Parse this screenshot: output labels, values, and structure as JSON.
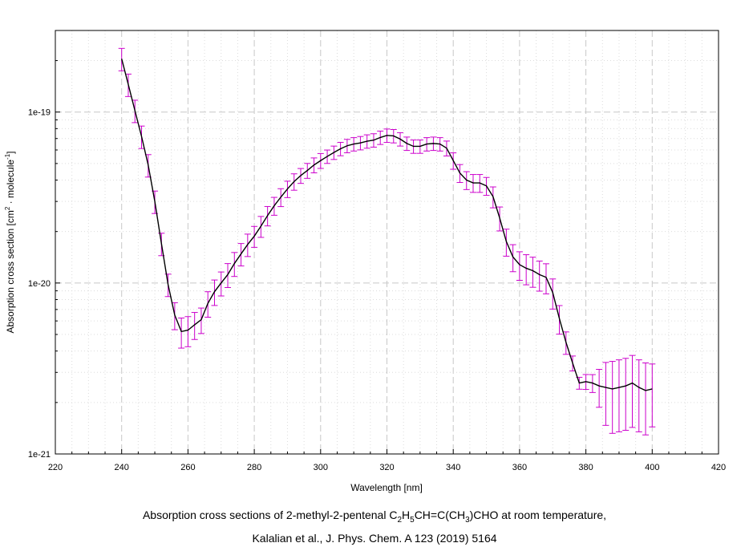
{
  "caption": {
    "line1_a": "Absorption cross sections of 2-methyl-2-pentenal C",
    "line1_s1": "2",
    "line1_b": "H",
    "line1_s2": "5",
    "line1_c": "CH=C(CH",
    "line1_s3": "3",
    "line1_d": ")CHO at room temperature,",
    "line2": "Kalalian et al., J. Phys. Chem. A 123 (2019) 5164"
  },
  "chart_data": {
    "type": "line",
    "xlabel": "Wavelength [nm]",
    "ylabel_main": "Absorption cross section [cm",
    "ylabel_sup1": "2",
    "ylabel_mid": " · molecule",
    "ylabel_sup2": "-1",
    "ylabel_end": "]",
    "xlim": [
      220,
      420
    ],
    "ylim": [
      1e-21,
      3e-19
    ],
    "yscale": "log",
    "x_ticks": [
      220,
      240,
      260,
      280,
      300,
      320,
      340,
      360,
      380,
      400,
      420
    ],
    "x_tick_labels": [
      "220",
      "240",
      "260",
      "280",
      "300",
      "320",
      "340",
      "360",
      "380",
      "400",
      "420"
    ],
    "y_ticks": [
      1e-21,
      1e-20,
      1e-19
    ],
    "y_tick_labels": [
      "1e-21",
      "1e-20",
      "1e-19"
    ],
    "grid": true,
    "line_color": "#000000",
    "errorbar_color": "#cc00cc",
    "series": [
      {
        "x": [
          240,
          242,
          244,
          246,
          248,
          250,
          252,
          254,
          256,
          258,
          260,
          262,
          264,
          266,
          268,
          270,
          272,
          274,
          276,
          278,
          280,
          282,
          284,
          286,
          288,
          290,
          292,
          294,
          296,
          298,
          300,
          302,
          304,
          306,
          308,
          310,
          312,
          314,
          316,
          318,
          320,
          322,
          324,
          326,
          328,
          330,
          332,
          334,
          336,
          338,
          340,
          342,
          344,
          346,
          348,
          350,
          352,
          354,
          356,
          358,
          360,
          362,
          364,
          366,
          368,
          370,
          372,
          374,
          376,
          378,
          380,
          382,
          384,
          386,
          388,
          390,
          392,
          394,
          396,
          398,
          400
        ],
        "y": [
          2.05e-19,
          1.45e-19,
          1.02e-19,
          7.2e-20,
          4.9e-20,
          3e-20,
          1.7e-20,
          9.8e-21,
          6.5e-21,
          5.2e-21,
          5.3e-21,
          5.7e-21,
          6.1e-21,
          7.6e-21,
          8.9e-21,
          1e-20,
          1.12e-20,
          1.3e-20,
          1.48e-20,
          1.68e-20,
          1.88e-20,
          2.15e-20,
          2.48e-20,
          2.83e-20,
          3.18e-20,
          3.55e-20,
          3.92e-20,
          4.25e-20,
          4.55e-20,
          4.9e-20,
          5.2e-20,
          5.5e-20,
          5.8e-20,
          6.1e-20,
          6.35e-20,
          6.5e-20,
          6.6e-20,
          6.75e-20,
          6.85e-20,
          7.1e-20,
          7.3e-20,
          7.25e-20,
          6.95e-20,
          6.55e-20,
          6.3e-20,
          6.3e-20,
          6.5e-20,
          6.55e-20,
          6.5e-20,
          6.15e-20,
          5.2e-20,
          4.4e-20,
          4e-20,
          3.85e-20,
          3.85e-20,
          3.7e-20,
          3.2e-20,
          2.4e-20,
          1.75e-20,
          1.42e-20,
          1.28e-20,
          1.22e-20,
          1.18e-20,
          1.12e-20,
          1.08e-20,
          8.8e-21,
          6.2e-21,
          4.5e-21,
          3.4e-21,
          2.6e-21,
          2.65e-21,
          2.6e-21,
          2.5e-21,
          2.45e-21,
          2.4e-21,
          2.45e-21,
          2.5e-21,
          2.6e-21,
          2.45e-21,
          2.35e-21,
          2.4e-21
        ],
        "y_err_frac": [
          0.15,
          0.15,
          0.15,
          0.15,
          0.15,
          0.15,
          0.15,
          0.15,
          0.18,
          0.2,
          0.2,
          0.18,
          0.17,
          0.17,
          0.17,
          0.16,
          0.16,
          0.16,
          0.15,
          0.15,
          0.14,
          0.14,
          0.13,
          0.12,
          0.12,
          0.11,
          0.11,
          0.1,
          0.1,
          0.1,
          0.1,
          0.09,
          0.09,
          0.09,
          0.09,
          0.09,
          0.09,
          0.09,
          0.09,
          0.09,
          0.09,
          0.09,
          0.09,
          0.09,
          0.09,
          0.09,
          0.09,
          0.09,
          0.09,
          0.1,
          0.11,
          0.12,
          0.12,
          0.12,
          0.12,
          0.12,
          0.14,
          0.16,
          0.18,
          0.18,
          0.19,
          0.2,
          0.2,
          0.2,
          0.2,
          0.2,
          0.19,
          0.15,
          0.1,
          0.08,
          0.1,
          0.12,
          0.25,
          0.4,
          0.45,
          0.45,
          0.45,
          0.45,
          0.45,
          0.45,
          0.4
        ]
      }
    ]
  }
}
